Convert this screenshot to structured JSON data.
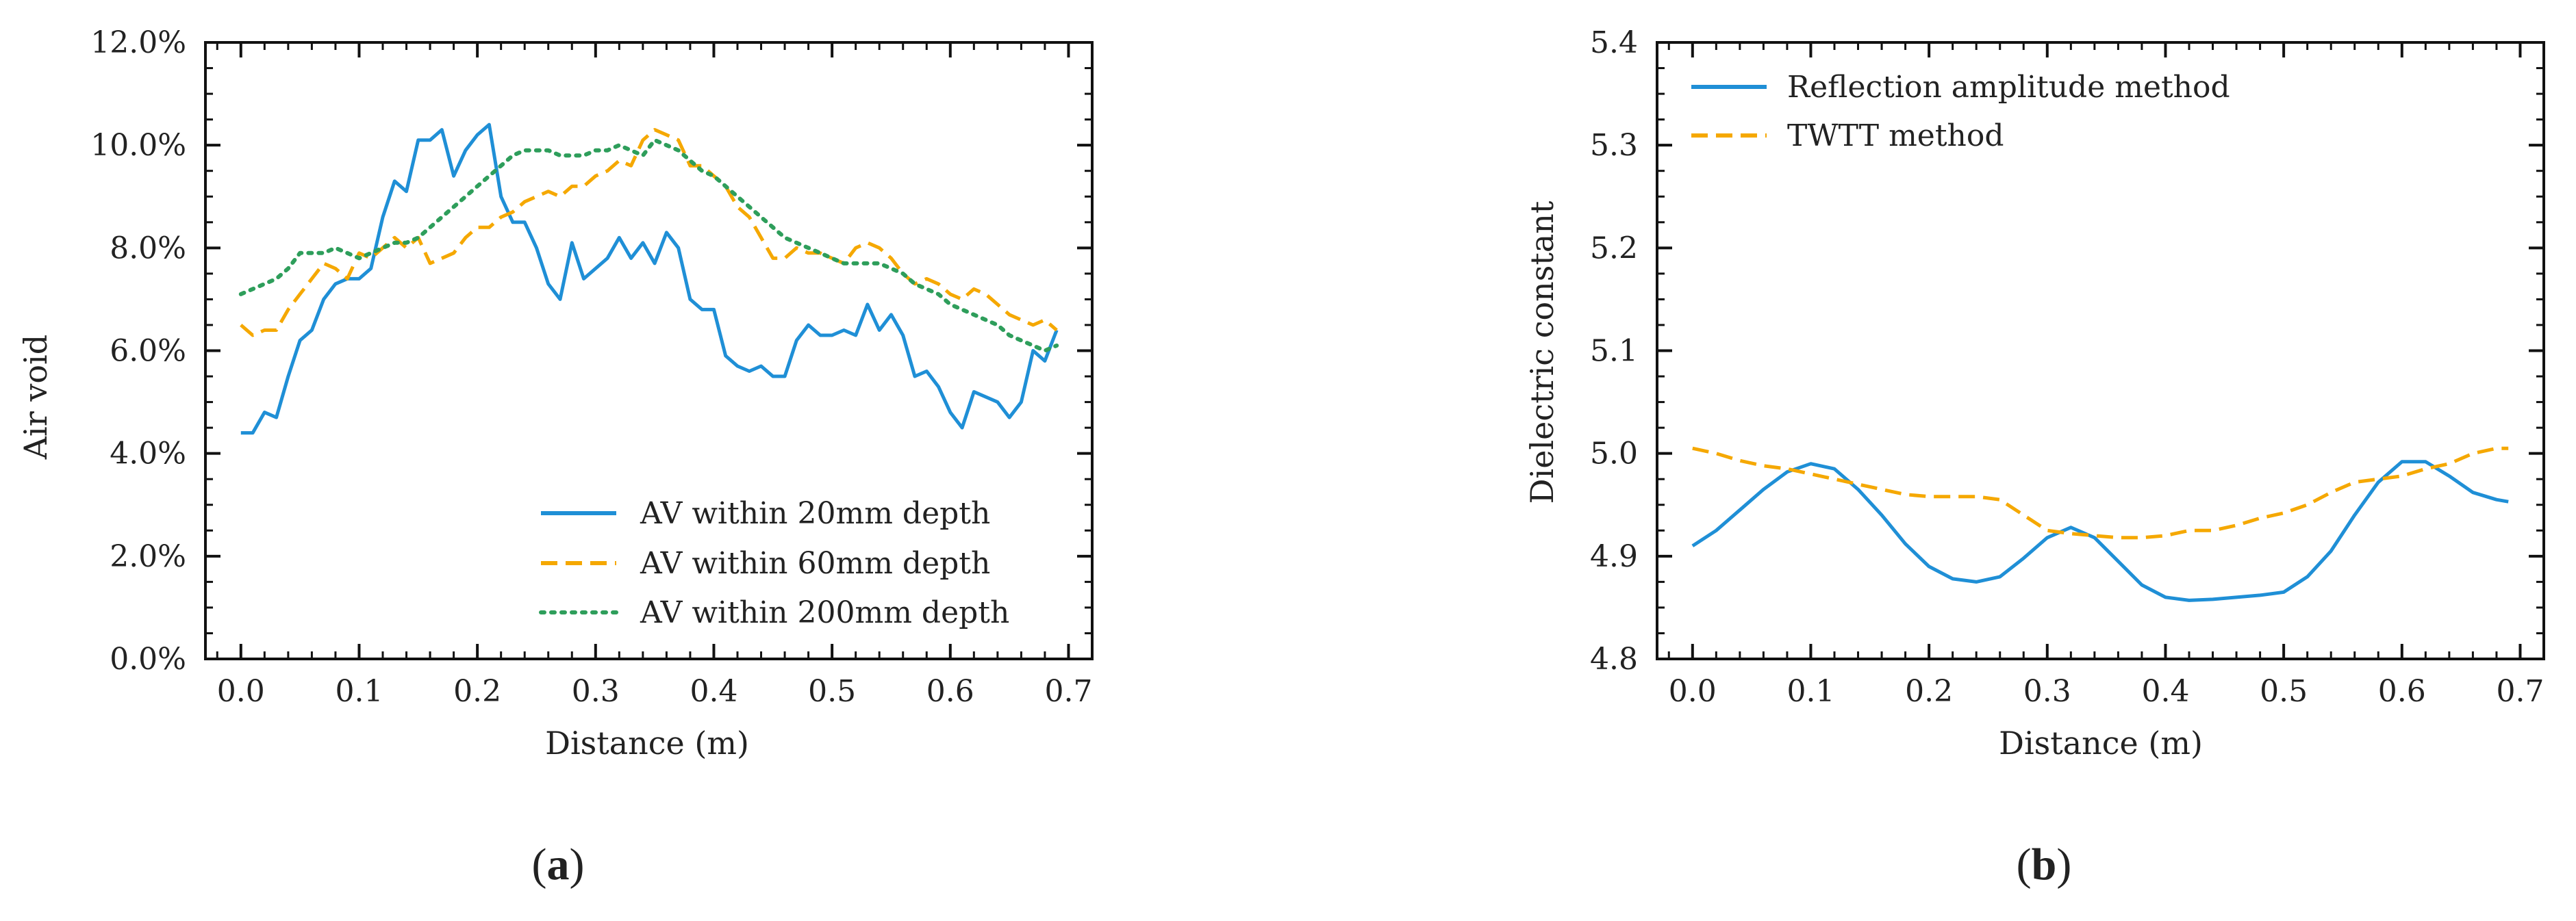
{
  "chart_data": [
    {
      "type": "line",
      "panel_label_open": "(",
      "panel_label_letter": "a",
      "panel_label_close": ")",
      "xlabel": "Distance (m)",
      "ylabel": "Air void",
      "xlim": [
        -0.03,
        0.72
      ],
      "ylim": [
        0.0,
        12.0
      ],
      "xticks": [
        0.0,
        0.1,
        0.2,
        0.3,
        0.4,
        0.5,
        0.6,
        0.7
      ],
      "xtick_labels": [
        "0.0",
        "0.1",
        "0.2",
        "0.3",
        "0.4",
        "0.5",
        "0.6",
        "0.7"
      ],
      "yticks": [
        0,
        2,
        4,
        6,
        8,
        10,
        12
      ],
      "ytick_labels": [
        "0.0%",
        "2.0%",
        "4.0%",
        "6.0%",
        "8.0%",
        "10.0%",
        "12.0%"
      ],
      "legend_position": "lower-right",
      "series": [
        {
          "name": "AV within 20mm depth",
          "color": "#1f8fd6",
          "style": "solid",
          "x": [
            0.0,
            0.01,
            0.02,
            0.03,
            0.04,
            0.05,
            0.06,
            0.07,
            0.08,
            0.09,
            0.1,
            0.11,
            0.12,
            0.13,
            0.14,
            0.15,
            0.16,
            0.17,
            0.18,
            0.19,
            0.2,
            0.21,
            0.22,
            0.23,
            0.24,
            0.25,
            0.26,
            0.27,
            0.28,
            0.29,
            0.3,
            0.31,
            0.32,
            0.33,
            0.34,
            0.35,
            0.36,
            0.37,
            0.38,
            0.39,
            0.4,
            0.41,
            0.42,
            0.43,
            0.44,
            0.45,
            0.46,
            0.47,
            0.48,
            0.49,
            0.5,
            0.51,
            0.52,
            0.53,
            0.54,
            0.55,
            0.56,
            0.57,
            0.58,
            0.59,
            0.6,
            0.61,
            0.62,
            0.63,
            0.64,
            0.65,
            0.66,
            0.67,
            0.68,
            0.69
          ],
          "values": [
            4.4,
            4.4,
            4.8,
            4.7,
            5.5,
            6.2,
            6.4,
            7.0,
            7.3,
            7.4,
            7.4,
            7.6,
            8.6,
            9.3,
            9.1,
            10.1,
            10.1,
            10.3,
            9.4,
            9.9,
            10.2,
            10.4,
            9.0,
            8.5,
            8.5,
            8.0,
            7.3,
            7.0,
            8.1,
            7.4,
            7.6,
            7.8,
            8.2,
            7.8,
            8.1,
            7.7,
            8.3,
            8.0,
            7.0,
            6.8,
            6.8,
            5.9,
            5.7,
            5.6,
            5.7,
            5.5,
            5.5,
            6.2,
            6.5,
            6.3,
            6.3,
            6.4,
            6.3,
            6.9,
            6.4,
            6.7,
            6.3,
            5.5,
            5.6,
            5.3,
            4.8,
            4.5,
            5.2,
            5.1,
            5.0,
            4.7,
            5.0,
            6.0,
            5.8,
            6.4
          ]
        },
        {
          "name": "AV within 60mm depth",
          "color": "#f5a800",
          "style": "dashed",
          "x": [
            0.0,
            0.01,
            0.02,
            0.03,
            0.04,
            0.05,
            0.06,
            0.07,
            0.08,
            0.09,
            0.1,
            0.11,
            0.12,
            0.13,
            0.14,
            0.15,
            0.16,
            0.17,
            0.18,
            0.19,
            0.2,
            0.21,
            0.22,
            0.23,
            0.24,
            0.25,
            0.26,
            0.27,
            0.28,
            0.29,
            0.3,
            0.31,
            0.32,
            0.33,
            0.34,
            0.35,
            0.36,
            0.37,
            0.38,
            0.39,
            0.4,
            0.41,
            0.42,
            0.43,
            0.44,
            0.45,
            0.46,
            0.47,
            0.48,
            0.49,
            0.5,
            0.51,
            0.52,
            0.53,
            0.54,
            0.55,
            0.56,
            0.57,
            0.58,
            0.59,
            0.6,
            0.61,
            0.62,
            0.63,
            0.64,
            0.65,
            0.66,
            0.67,
            0.68,
            0.69
          ],
          "values": [
            6.5,
            6.3,
            6.4,
            6.4,
            6.8,
            7.1,
            7.4,
            7.7,
            7.6,
            7.4,
            7.9,
            7.8,
            8.0,
            8.2,
            8.0,
            8.2,
            7.7,
            7.8,
            7.9,
            8.2,
            8.4,
            8.4,
            8.6,
            8.7,
            8.9,
            9.0,
            9.1,
            9.0,
            9.2,
            9.2,
            9.4,
            9.5,
            9.7,
            9.6,
            10.1,
            10.3,
            10.2,
            10.1,
            9.6,
            9.6,
            9.4,
            9.2,
            8.8,
            8.6,
            8.2,
            7.8,
            7.8,
            8.0,
            7.9,
            7.9,
            7.8,
            7.7,
            8.0,
            8.1,
            8.0,
            7.8,
            7.5,
            7.3,
            7.4,
            7.3,
            7.1,
            7.0,
            7.2,
            7.1,
            6.9,
            6.7,
            6.6,
            6.5,
            6.6,
            6.4
          ]
        },
        {
          "name": "AV within 200mm depth",
          "color": "#2e9e5b",
          "style": "dotted",
          "x": [
            0.0,
            0.01,
            0.02,
            0.03,
            0.04,
            0.05,
            0.06,
            0.07,
            0.08,
            0.09,
            0.1,
            0.11,
            0.12,
            0.13,
            0.14,
            0.15,
            0.16,
            0.17,
            0.18,
            0.19,
            0.2,
            0.21,
            0.22,
            0.23,
            0.24,
            0.25,
            0.26,
            0.27,
            0.28,
            0.29,
            0.3,
            0.31,
            0.32,
            0.33,
            0.34,
            0.35,
            0.36,
            0.37,
            0.38,
            0.39,
            0.4,
            0.41,
            0.42,
            0.43,
            0.44,
            0.45,
            0.46,
            0.47,
            0.48,
            0.49,
            0.5,
            0.51,
            0.52,
            0.53,
            0.54,
            0.55,
            0.56,
            0.57,
            0.58,
            0.59,
            0.6,
            0.61,
            0.62,
            0.63,
            0.64,
            0.65,
            0.66,
            0.67,
            0.68,
            0.69
          ],
          "values": [
            7.1,
            7.2,
            7.3,
            7.4,
            7.6,
            7.9,
            7.9,
            7.9,
            8.0,
            7.9,
            7.8,
            7.9,
            8.0,
            8.1,
            8.1,
            8.2,
            8.4,
            8.6,
            8.8,
            9.0,
            9.2,
            9.4,
            9.6,
            9.8,
            9.9,
            9.9,
            9.9,
            9.8,
            9.8,
            9.8,
            9.9,
            9.9,
            10.0,
            9.9,
            9.8,
            10.1,
            10.0,
            9.9,
            9.7,
            9.5,
            9.4,
            9.2,
            9.0,
            8.8,
            8.6,
            8.4,
            8.2,
            8.1,
            8.0,
            7.9,
            7.8,
            7.7,
            7.7,
            7.7,
            7.7,
            7.6,
            7.5,
            7.3,
            7.2,
            7.1,
            6.9,
            6.8,
            6.7,
            6.6,
            6.5,
            6.3,
            6.2,
            6.1,
            6.0,
            6.1
          ]
        }
      ]
    },
    {
      "type": "line",
      "panel_label_open": "(",
      "panel_label_letter": "b",
      "panel_label_close": ")",
      "xlabel": "Distance (m)",
      "ylabel": "Dielectric constant",
      "xlim": [
        -0.03,
        0.72
      ],
      "ylim": [
        4.8,
        5.4
      ],
      "xticks": [
        0.0,
        0.1,
        0.2,
        0.3,
        0.4,
        0.5,
        0.6,
        0.7
      ],
      "xtick_labels": [
        "0.0",
        "0.1",
        "0.2",
        "0.3",
        "0.4",
        "0.5",
        "0.6",
        "0.7"
      ],
      "yticks": [
        4.8,
        4.9,
        5.0,
        5.1,
        5.2,
        5.3,
        5.4
      ],
      "ytick_labels": [
        "4.8",
        "4.9",
        "5.0",
        "5.1",
        "5.2",
        "5.3",
        "5.4"
      ],
      "legend_position": "top-left",
      "series": [
        {
          "name": "Reflection amplitude method",
          "color": "#1f8fd6",
          "style": "solid",
          "x": [
            0.0,
            0.02,
            0.04,
            0.06,
            0.08,
            0.1,
            0.12,
            0.14,
            0.16,
            0.18,
            0.2,
            0.22,
            0.24,
            0.26,
            0.28,
            0.3,
            0.32,
            0.34,
            0.36,
            0.38,
            0.4,
            0.42,
            0.44,
            0.46,
            0.48,
            0.5,
            0.52,
            0.54,
            0.56,
            0.58,
            0.6,
            0.62,
            0.64,
            0.66,
            0.68,
            0.69
          ],
          "values": [
            4.91,
            4.925,
            4.945,
            4.965,
            4.982,
            4.99,
            4.985,
            4.965,
            4.94,
            4.912,
            4.89,
            4.878,
            4.875,
            4.88,
            4.898,
            4.918,
            4.928,
            4.918,
            4.895,
            4.872,
            4.86,
            4.857,
            4.858,
            4.86,
            4.862,
            4.865,
            4.88,
            4.905,
            4.94,
            4.972,
            4.992,
            4.992,
            4.978,
            4.962,
            4.955,
            4.953
          ]
        },
        {
          "name": "TWTT method",
          "color": "#f5a800",
          "style": "dashed",
          "x": [
            0.0,
            0.02,
            0.04,
            0.06,
            0.08,
            0.1,
            0.12,
            0.14,
            0.16,
            0.18,
            0.2,
            0.22,
            0.24,
            0.26,
            0.28,
            0.3,
            0.32,
            0.34,
            0.36,
            0.38,
            0.4,
            0.42,
            0.44,
            0.46,
            0.48,
            0.5,
            0.52,
            0.54,
            0.56,
            0.58,
            0.6,
            0.62,
            0.64,
            0.66,
            0.68,
            0.69
          ],
          "values": [
            5.005,
            5.0,
            4.993,
            4.988,
            4.985,
            4.98,
            4.975,
            4.97,
            4.965,
            4.96,
            4.958,
            4.958,
            4.958,
            4.955,
            4.94,
            4.925,
            4.922,
            4.92,
            4.918,
            4.918,
            4.92,
            4.925,
            4.925,
            4.93,
            4.937,
            4.942,
            4.95,
            4.962,
            4.972,
            4.975,
            4.978,
            4.985,
            4.99,
            5.0,
            5.005,
            5.005
          ]
        }
      ]
    }
  ]
}
